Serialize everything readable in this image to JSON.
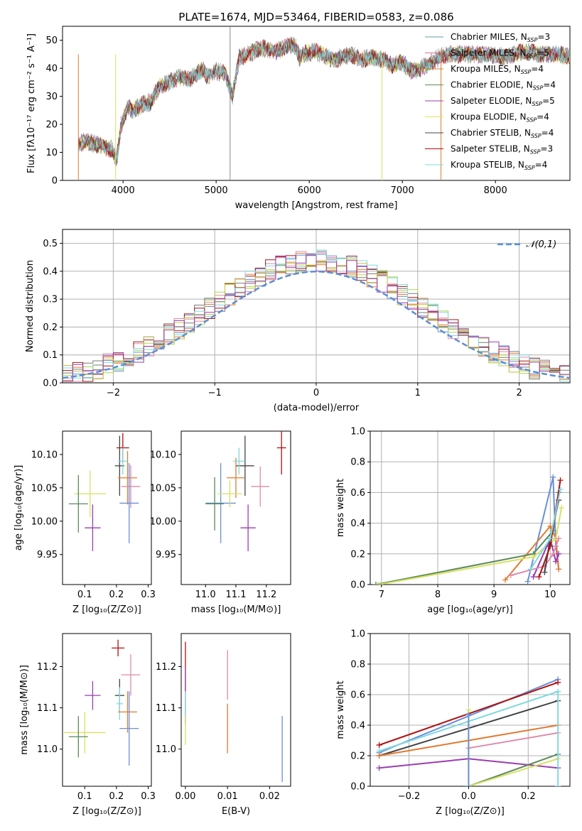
{
  "palette": [
    "#5f9ea0",
    "#e0709a",
    "#c08040",
    "#5a8a5a",
    "#9a3db0",
    "#e0e05a",
    "#444444",
    "#b01010",
    "#80d8e0"
  ],
  "styles": {
    "grid_color": "#b0b0b0",
    "axis_color": "#000000"
  },
  "chart_data": [
    {
      "id": "spectrum",
      "type": "line",
      "title": "PLATE=1674, MJD=53464, FIBERID=0583, z=0.086",
      "xlabel": "wavelength [Angstrom, rest frame]",
      "ylabel": "Flux [fλ10⁻¹⁷ erg cm⁻² s⁻¹ A⁻¹]",
      "xlim": [
        3350,
        8800
      ],
      "ylim": [
        0,
        55
      ],
      "xticks": [
        4000,
        5000,
        6000,
        7000,
        8000
      ],
      "yticks": [
        0,
        10,
        20,
        30,
        40,
        50
      ],
      "grid": false,
      "legend": "top-right",
      "legend_entries": [
        {
          "label": "Chabrier MILES, N",
          "sub": "SSP",
          "tail": "=3",
          "color": "#5f9ea0"
        },
        {
          "label": "Salpeter MILES, N",
          "sub": "SSP",
          "tail": "=5",
          "color": "#e0709a"
        },
        {
          "label": "Kroupa MILES, N",
          "sub": "SSP",
          "tail": "=4",
          "color": "#c08040"
        },
        {
          "label": "Chabrier ELODIE, N",
          "sub": "SSP",
          "tail": "=4",
          "color": "#5a8a5a"
        },
        {
          "label": "Salpeter ELODIE, N",
          "sub": "SSP",
          "tail": "=5",
          "color": "#9a3db0"
        },
        {
          "label": "Kroupa ELODIE, N",
          "sub": "SSP",
          "tail": "=4",
          "color": "#e0e05a"
        },
        {
          "label": "Chabrier STELIB, N",
          "sub": "SSP",
          "tail": "=4",
          "color": "#444444"
        },
        {
          "label": "Salpeter STELIB, N",
          "sub": "SSP",
          "tail": "=3",
          "color": "#b01010"
        },
        {
          "label": "Kroupa STELIB, N",
          "sub": "SSP",
          "tail": "=4",
          "color": "#80d8e0"
        }
      ],
      "continuum": [
        [
          3520,
          13
        ],
        [
          3600,
          14
        ],
        [
          3700,
          13
        ],
        [
          3800,
          12
        ],
        [
          3880,
          11
        ],
        [
          3930,
          7
        ],
        [
          3980,
          20
        ],
        [
          4050,
          26
        ],
        [
          4100,
          25
        ],
        [
          4200,
          27
        ],
        [
          4300,
          28
        ],
        [
          4400,
          34
        ],
        [
          4500,
          35
        ],
        [
          4600,
          37
        ],
        [
          4700,
          36
        ],
        [
          4800,
          38
        ],
        [
          4860,
          40
        ],
        [
          4900,
          37
        ],
        [
          5000,
          39
        ],
        [
          5100,
          38
        ],
        [
          5175,
          30
        ],
        [
          5250,
          44
        ],
        [
          5350,
          45
        ],
        [
          5450,
          47
        ],
        [
          5550,
          47
        ],
        [
          5650,
          46
        ],
        [
          5750,
          48
        ],
        [
          5850,
          48
        ],
        [
          5895,
          44
        ],
        [
          5950,
          45
        ],
        [
          6050,
          46
        ],
        [
          6150,
          45
        ],
        [
          6250,
          43
        ],
        [
          6350,
          44
        ],
        [
          6450,
          45
        ],
        [
          6563,
          43
        ],
        [
          6650,
          44
        ],
        [
          6800,
          43
        ],
        [
          6900,
          41
        ],
        [
          7000,
          42
        ],
        [
          7100,
          39
        ],
        [
          7200,
          40
        ],
        [
          7300,
          42
        ],
        [
          7400,
          44
        ],
        [
          7500,
          45
        ],
        [
          7700,
          45
        ],
        [
          7900,
          45
        ],
        [
          8100,
          44
        ],
        [
          8300,
          46
        ],
        [
          8500,
          45
        ],
        [
          8700,
          45
        ],
        [
          8800,
          44
        ]
      ],
      "noise": {
        "amp": 2.2,
        "start": 3520,
        "end": 8800,
        "step": 4
      }
    },
    {
      "id": "residuals",
      "type": "line",
      "xlabel": "(data-model)/error",
      "ylabel": "Normed distribution",
      "xlim": [
        -2.5,
        2.5
      ],
      "ylim": [
        0,
        0.55
      ],
      "xticks": [
        -2,
        -1,
        0,
        1,
        2
      ],
      "xtick_labels": [
        "−2",
        "−1",
        "0",
        "1",
        "2"
      ],
      "yticks": [
        0,
        0.1,
        0.2,
        0.3,
        0.4,
        0.5
      ],
      "ytick_labels": [
        "0.0",
        "0.1",
        "0.2",
        "0.3",
        "0.4",
        "0.5"
      ],
      "grid": true,
      "legend": "top-right",
      "gaussian_label": "𝒩(0,1)",
      "gaussian_color": "#5b8ed8",
      "hist_colors": [
        "#6a8fd8",
        "#e07a30",
        "#e08aaa",
        "#aad84a",
        "#7a7a7a",
        "#a01818",
        "#80d8e0",
        "#c0c040",
        "#9a3db0"
      ],
      "bin_width": 0.1,
      "x_start": -2.5
    },
    {
      "id": "age_vs_Z",
      "type": "scatter",
      "xlabel": "Z [log₁₀(Z/Z⊙)]",
      "ylabel": "age  [log₁₀(age/yr)]",
      "xlim": [
        0.03,
        0.31
      ],
      "ylim": [
        9.905,
        10.135
      ],
      "xticks": [
        0.1,
        0.2,
        0.3
      ],
      "xtick_labels": [
        "0.1",
        "0.2",
        "0.3"
      ],
      "yticks": [
        9.95,
        10.0,
        10.05,
        10.1
      ],
      "ytick_labels": [
        "9.95",
        "10.00",
        "10.05",
        "10.10"
      ],
      "grid": false,
      "points": [
        {
          "x": 0.117,
          "y": 10.041,
          "xe": 0.05,
          "ye": 0.035,
          "c": "#d8e060"
        },
        {
          "x": 0.08,
          "y": 10.026,
          "xe": 0.03,
          "ye": 0.043,
          "c": "#5a8a5a"
        },
        {
          "x": 0.125,
          "y": 9.99,
          "xe": 0.025,
          "ye": 0.035,
          "c": "#9a3db0"
        },
        {
          "x": 0.22,
          "y": 10.11,
          "xe": 0.02,
          "ye": 0.022,
          "c": "#b01010"
        },
        {
          "x": 0.21,
          "y": 10.083,
          "xe": 0.015,
          "ye": 0.045,
          "c": "#444444"
        },
        {
          "x": 0.235,
          "y": 10.065,
          "xe": 0.03,
          "ye": 0.04,
          "c": "#e07a30"
        },
        {
          "x": 0.245,
          "y": 10.052,
          "xe": 0.03,
          "ye": 0.032,
          "c": "#e08aaa"
        },
        {
          "x": 0.22,
          "y": 10.09,
          "xe": 0.015,
          "ye": 0.02,
          "c": "#80d8e0"
        },
        {
          "x": 0.24,
          "y": 10.027,
          "xe": 0.03,
          "ye": 0.06,
          "c": "#6a8fd8"
        }
      ]
    },
    {
      "id": "age_vs_mass",
      "type": "scatter",
      "xlabel": "mass [log₁₀(M/M⊙)]",
      "ylabel": "",
      "xlim": [
        10.92,
        11.28
      ],
      "ylim": [
        9.905,
        10.135
      ],
      "xticks": [
        11.0,
        11.1,
        11.2
      ],
      "xtick_labels": [
        "11.0",
        "11.1",
        "11.2"
      ],
      "yticks": [
        9.95,
        10.0,
        10.05,
        10.1
      ],
      "ytick_labels": [
        "9.95",
        "10.00",
        "10.05",
        "10.10"
      ],
      "grid": false,
      "points": [
        {
          "x": 11.25,
          "y": 10.11,
          "xe": 0.015,
          "ye": 0.04,
          "c": "#b01010"
        },
        {
          "x": 11.13,
          "y": 10.083,
          "xe": 0.03,
          "ye": 0.045,
          "c": "#444444"
        },
        {
          "x": 11.1,
          "y": 10.065,
          "xe": 0.03,
          "ye": 0.03,
          "c": "#e07a30"
        },
        {
          "x": 11.18,
          "y": 10.052,
          "xe": 0.03,
          "ye": 0.03,
          "c": "#e08aaa"
        },
        {
          "x": 11.11,
          "y": 10.09,
          "xe": 0.02,
          "ye": 0.02,
          "c": "#80d8e0"
        },
        {
          "x": 11.05,
          "y": 10.027,
          "xe": 0.05,
          "ye": 0.06,
          "c": "#6a8fd8"
        },
        {
          "x": 11.14,
          "y": 9.99,
          "xe": 0.025,
          "ye": 0.035,
          "c": "#9a3db0"
        },
        {
          "x": 11.08,
          "y": 10.041,
          "xe": 0.04,
          "ye": 0.02,
          "c": "#d8e060"
        },
        {
          "x": 11.03,
          "y": 10.026,
          "xe": 0.03,
          "ye": 0.04,
          "c": "#5a8a5a"
        }
      ]
    },
    {
      "id": "massweight_vs_age",
      "type": "line",
      "xlabel": "age  [log₁₀(age/yr)]",
      "ylabel": "mass weight",
      "xlim": [
        6.8,
        10.35
      ],
      "ylim": [
        0,
        1.0
      ],
      "xticks": [
        7,
        8,
        9,
        10
      ],
      "xtick_labels": [
        "7",
        "8",
        "9",
        "10"
      ],
      "yticks": [
        0,
        0.2,
        0.4,
        0.6,
        0.8,
        1.0
      ],
      "ytick_labels": [
        "0.0",
        "0.2",
        "0.4",
        "0.6",
        "0.8",
        "1.0"
      ],
      "grid": true,
      "series": [
        {
          "c": "#6a8fd8",
          "pts": [
            [
              9.6,
              0.02
            ],
            [
              10.05,
              0.7
            ],
            [
              10.1,
              0.25
            ],
            [
              10.15,
              0.1
            ]
          ]
        },
        {
          "c": "#e07a30",
          "pts": [
            [
              9.2,
              0.03
            ],
            [
              10.0,
              0.38
            ],
            [
              10.1,
              0.3
            ],
            [
              10.15,
              0.1
            ]
          ]
        },
        {
          "c": "#5a8a5a",
          "pts": [
            [
              6.9,
              0.0
            ],
            [
              9.7,
              0.2
            ],
            [
              10.05,
              0.35
            ],
            [
              10.15,
              0.6
            ]
          ]
        },
        {
          "c": "#d8e060",
          "pts": [
            [
              6.95,
              0.0
            ],
            [
              9.7,
              0.18
            ],
            [
              10.1,
              0.3
            ],
            [
              10.2,
              0.5
            ]
          ]
        },
        {
          "c": "#9a3db0",
          "pts": [
            [
              9.7,
              0.05
            ],
            [
              10.0,
              0.3
            ],
            [
              10.1,
              0.15
            ],
            [
              10.15,
              0.2
            ]
          ]
        },
        {
          "c": "#e08aaa",
          "pts": [
            [
              9.3,
              0.06
            ],
            [
              9.9,
              0.12
            ],
            [
              10.05,
              0.2
            ],
            [
              10.15,
              0.3
            ]
          ]
        },
        {
          "c": "#444444",
          "pts": [
            [
              9.9,
              0.08
            ],
            [
              10.0,
              0.3
            ],
            [
              10.15,
              0.55
            ]
          ]
        },
        {
          "c": "#b01010",
          "pts": [
            [
              9.8,
              0.05
            ],
            [
              10.0,
              0.25
            ],
            [
              10.18,
              0.68
            ]
          ]
        },
        {
          "c": "#80d8e0",
          "pts": [
            [
              9.65,
              0.1
            ],
            [
              10.0,
              0.3
            ],
            [
              10.18,
              0.62
            ]
          ]
        }
      ]
    },
    {
      "id": "mass_vs_Z",
      "type": "scatter",
      "xlabel": "Z [log₁₀(Z/Z⊙)]",
      "ylabel": "mass [log₁₀(M/M⊙)]",
      "xlim": [
        0.03,
        0.31
      ],
      "ylim": [
        10.91,
        11.28
      ],
      "xticks": [
        0.1,
        0.2,
        0.3
      ],
      "xtick_labels": [
        "0.1",
        "0.2",
        "0.3"
      ],
      "yticks": [
        11.0,
        11.1,
        11.2
      ],
      "ytick_labels": [
        "11.0",
        "11.1",
        "11.2"
      ],
      "grid": false,
      "points": [
        {
          "x": 0.205,
          "y": 11.245,
          "xe": 0.02,
          "ye": 0.02,
          "c": "#b01010"
        },
        {
          "x": 0.125,
          "y": 11.13,
          "xe": 0.025,
          "ye": 0.035,
          "c": "#9a3db0"
        },
        {
          "x": 0.245,
          "y": 11.18,
          "xe": 0.03,
          "ye": 0.05,
          "c": "#e08aaa"
        },
        {
          "x": 0.21,
          "y": 11.13,
          "xe": 0.015,
          "ye": 0.04,
          "c": "#444444"
        },
        {
          "x": 0.21,
          "y": 11.11,
          "xe": 0.01,
          "ye": 0.04,
          "c": "#80d8e0"
        },
        {
          "x": 0.235,
          "y": 11.09,
          "xe": 0.03,
          "ye": 0.05,
          "c": "#e07a30"
        },
        {
          "x": 0.24,
          "y": 11.05,
          "xe": 0.03,
          "ye": 0.09,
          "c": "#6a8fd8"
        },
        {
          "x": 0.1,
          "y": 11.04,
          "xe": 0.065,
          "ye": 0.05,
          "c": "#d8e060"
        },
        {
          "x": 0.08,
          "y": 11.03,
          "xe": 0.03,
          "ye": 0.05,
          "c": "#5a8a5a"
        }
      ]
    },
    {
      "id": "mass_vs_ebv",
      "type": "scatter",
      "xlabel": "E(B-V)",
      "ylabel": "",
      "xlim": [
        -0.001,
        0.025
      ],
      "ylim": [
        10.91,
        11.28
      ],
      "xticks": [
        0.0,
        0.01,
        0.02
      ],
      "xtick_labels": [
        "0.00",
        "0.01",
        "0.02"
      ],
      "yticks": [
        11.0,
        11.1,
        11.2
      ],
      "ytick_labels": [
        "11.0",
        "11.1",
        "11.2"
      ],
      "grid": false,
      "points": [
        {
          "x": 0.0,
          "y": 11.2,
          "xe": 0,
          "ye": 0.06,
          "c": "#b01010"
        },
        {
          "x": 0.0,
          "y": 11.13,
          "xe": 0,
          "ye": 0.07,
          "c": "#9a3db0"
        },
        {
          "x": 0.0,
          "y": 11.07,
          "xe": 0,
          "ye": 0.06,
          "c": "#d8e060"
        },
        {
          "x": 0.01,
          "y": 11.18,
          "xe": 0,
          "ye": 0.06,
          "c": "#e08aaa"
        },
        {
          "x": 0.01,
          "y": 11.05,
          "xe": 0,
          "ye": 0.06,
          "c": "#e07a30"
        },
        {
          "x": 0.0,
          "y": 11.11,
          "xe": 0,
          "ye": 0.03,
          "c": "#80d8e0"
        },
        {
          "x": 0.023,
          "y": 11.0,
          "xe": 0,
          "ye": 0.08,
          "c": "#6a8fd8"
        }
      ]
    },
    {
      "id": "massweight_vs_Z",
      "type": "line",
      "xlabel": "Z [log₁₀(Z/Z⊙)]",
      "ylabel": "mass weight",
      "xlim": [
        -0.33,
        0.34
      ],
      "ylim": [
        0,
        1.0
      ],
      "xticks": [
        -0.2,
        0.0,
        0.2
      ],
      "xtick_labels": [
        "−0.2",
        "0.0",
        "0.2"
      ],
      "yticks": [
        0,
        0.2,
        0.4,
        0.6,
        0.8,
        1.0
      ],
      "ytick_labels": [
        "0.0",
        "0.2",
        "0.4",
        "0.6",
        "0.8",
        "1.0"
      ],
      "grid": true,
      "series": [
        {
          "c": "#6a8fd8",
          "pts": [
            [
              -0.3,
              0.22
            ],
            [
              0.3,
              0.7
            ]
          ]
        },
        {
          "c": "#b01010",
          "pts": [
            [
              -0.3,
              0.27
            ],
            [
              0.3,
              0.68
            ]
          ]
        },
        {
          "c": "#80d8e0",
          "pts": [
            [
              -0.3,
              0.23
            ],
            [
              0.3,
              0.62
            ]
          ]
        },
        {
          "c": "#444444",
          "pts": [
            [
              -0.3,
              0.2
            ],
            [
              0.3,
              0.56
            ]
          ]
        },
        {
          "c": "#e07a30",
          "pts": [
            [
              -0.3,
              0.2
            ],
            [
              0.0,
              0.3
            ],
            [
              0.3,
              0.4
            ]
          ]
        },
        {
          "c": "#e08aaa",
          "pts": [
            [
              0.0,
              0.25
            ],
            [
              0.3,
              0.35
            ]
          ]
        },
        {
          "c": "#9a3db0",
          "pts": [
            [
              -0.3,
              0.12
            ],
            [
              0.0,
              0.18
            ],
            [
              0.3,
              0.12
            ]
          ]
        },
        {
          "c": "#5a8a5a",
          "pts": [
            [
              0.0,
              0.0
            ],
            [
              0.3,
              0.21
            ]
          ]
        },
        {
          "c": "#d8e060",
          "pts": [
            [
              0.0,
              0.5
            ],
            [
              0.0,
              0.0
            ],
            [
              0.3,
              0.18
            ]
          ]
        },
        {
          "c": "#80d8e0",
          "pts": [
            [
              0.3,
              0.0
            ],
            [
              0.3,
              0.62
            ]
          ]
        },
        {
          "c": "#6a8fd8",
          "pts": [
            [
              0.0,
              0.0
            ],
            [
              0.0,
              0.47
            ]
          ]
        }
      ]
    }
  ]
}
